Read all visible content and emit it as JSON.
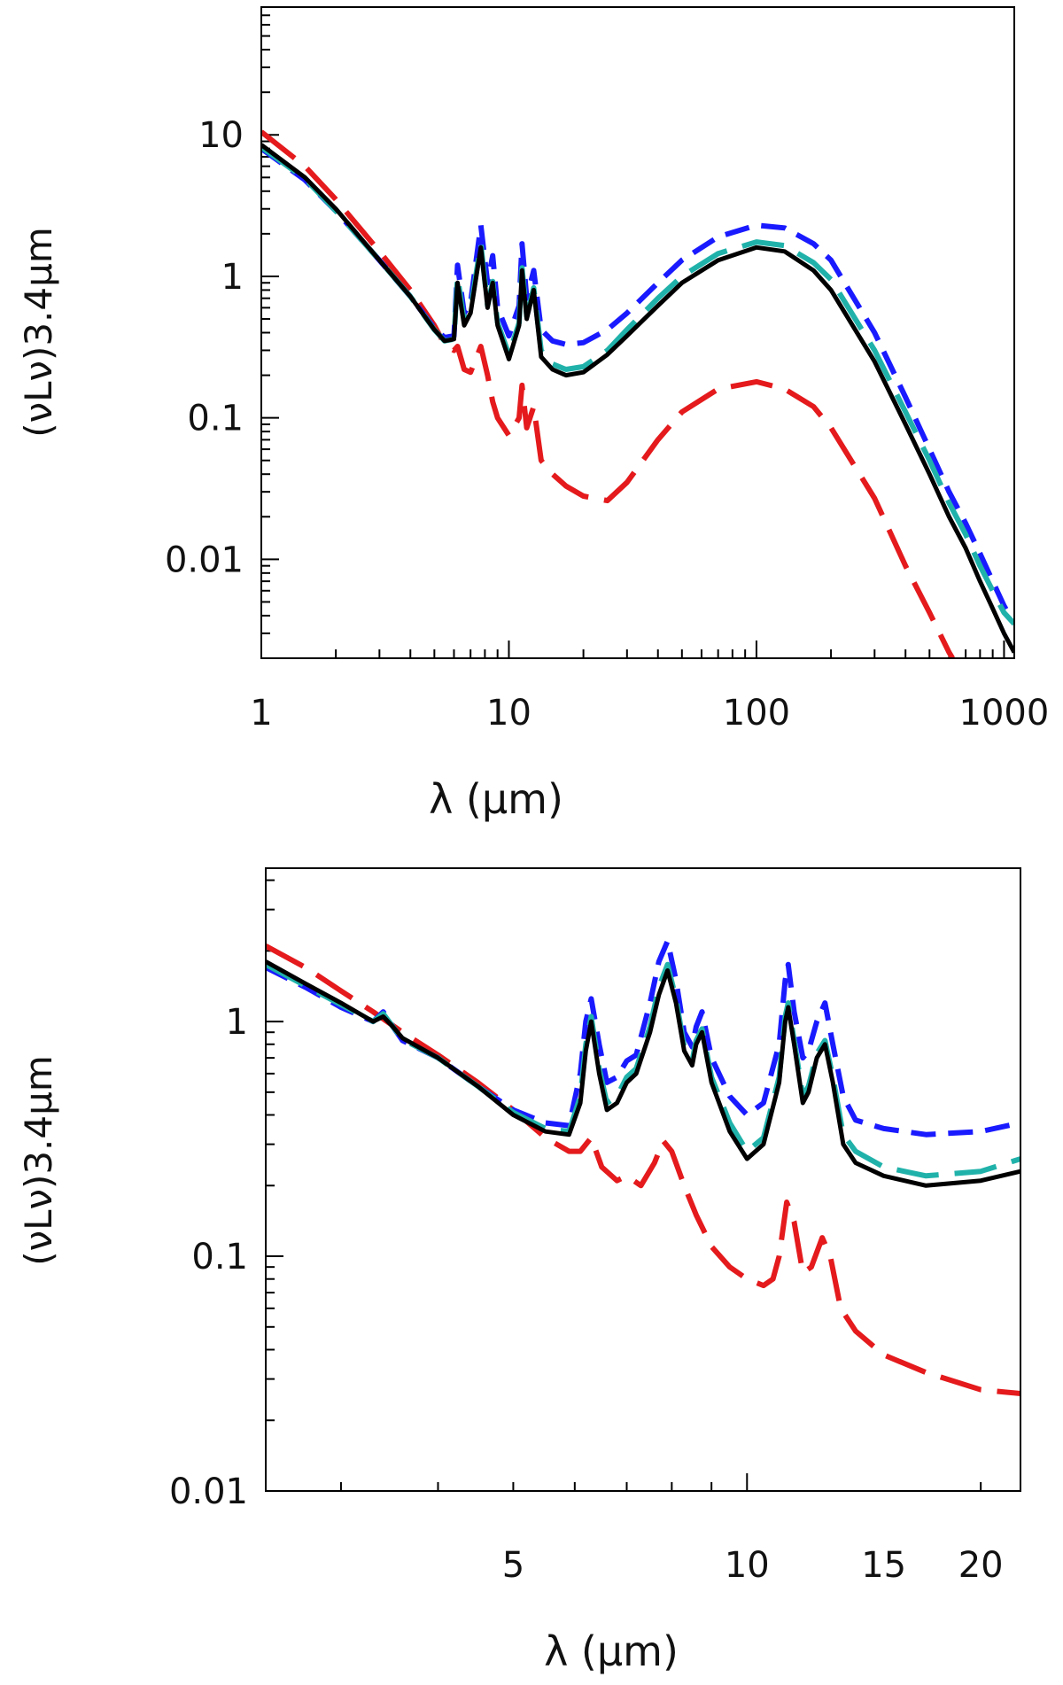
{
  "chart_data": [
    {
      "type": "line",
      "title": "",
      "xlabel": "λ (μm)",
      "ylabel": "(νLν)3.4μm",
      "xscale": "log",
      "yscale": "log",
      "xlim": [
        1,
        1100
      ],
      "ylim": [
        0.002,
        80
      ],
      "xticks": [
        1,
        10,
        100,
        1000
      ],
      "xtick_labels": [
        "1",
        "10",
        "100",
        "1000"
      ],
      "yticks": [
        0.01,
        0.1,
        1,
        10
      ],
      "ytick_labels": [
        "0.01",
        "0.1",
        "1",
        "10"
      ],
      "grid": false,
      "legend": "none",
      "series": [
        {
          "color": "#000000",
          "dash": "solid",
          "x": [
            1,
            1.5,
            2,
            3,
            4,
            5,
            5.5,
            6,
            6.2,
            6.6,
            7,
            7.7,
            8.2,
            8.6,
            9,
            10,
            11,
            11.3,
            11.8,
            12.6,
            13.5,
            15,
            17,
            20,
            25,
            30,
            40,
            50,
            70,
            100,
            130,
            170,
            200,
            300,
            400,
            500,
            600,
            700,
            800,
            900,
            1000,
            1100
          ],
          "y": [
            8.5,
            5,
            3,
            1.3,
            0.72,
            0.42,
            0.35,
            0.36,
            0.9,
            0.45,
            0.55,
            1.6,
            0.6,
            0.9,
            0.45,
            0.26,
            0.45,
            1.1,
            0.5,
            0.8,
            0.27,
            0.22,
            0.2,
            0.21,
            0.28,
            0.38,
            0.62,
            0.9,
            1.3,
            1.6,
            1.5,
            1.1,
            0.8,
            0.25,
            0.09,
            0.04,
            0.02,
            0.012,
            0.007,
            0.0045,
            0.003,
            0.0022
          ]
        },
        {
          "color": "#1a1aff",
          "dash": "short-dash",
          "x": [
            1,
            1.5,
            2,
            3,
            4,
            5,
            5.5,
            6,
            6.2,
            6.6,
            7,
            7.7,
            8.2,
            8.6,
            9,
            10,
            11,
            11.3,
            11.8,
            12.6,
            13.5,
            15,
            17,
            20,
            25,
            30,
            40,
            50,
            70,
            100,
            130,
            170,
            200,
            300,
            400,
            500,
            600,
            700,
            800,
            900,
            1000,
            1100
          ],
          "y": [
            8.0,
            4.8,
            2.9,
            1.3,
            0.72,
            0.43,
            0.37,
            0.38,
            1.2,
            0.55,
            0.65,
            2.3,
            0.9,
            1.4,
            0.6,
            0.38,
            0.62,
            1.7,
            0.7,
            1.1,
            0.42,
            0.35,
            0.33,
            0.34,
            0.42,
            0.55,
            0.9,
            1.3,
            1.9,
            2.3,
            2.2,
            1.7,
            1.3,
            0.4,
            0.14,
            0.06,
            0.03,
            0.018,
            0.011,
            0.007,
            0.0047,
            0.0035
          ]
        },
        {
          "color": "#20b2aa",
          "dash": "long-dash",
          "x": [
            1,
            1.5,
            2,
            3,
            4,
            5,
            5.5,
            6,
            6.2,
            6.6,
            7,
            7.7,
            8.2,
            8.6,
            9,
            10,
            11,
            11.3,
            11.8,
            12.6,
            13.5,
            15,
            17,
            20,
            25,
            30,
            40,
            50,
            70,
            100,
            130,
            170,
            200,
            300,
            400,
            500,
            600,
            700,
            800,
            900,
            1000,
            1100
          ],
          "y": [
            8.2,
            4.9,
            2.9,
            1.3,
            0.72,
            0.42,
            0.35,
            0.36,
            1.0,
            0.48,
            0.58,
            1.7,
            0.62,
            0.92,
            0.47,
            0.28,
            0.47,
            1.15,
            0.52,
            0.83,
            0.3,
            0.24,
            0.22,
            0.23,
            0.3,
            0.42,
            0.7,
            1.0,
            1.45,
            1.75,
            1.65,
            1.25,
            0.95,
            0.3,
            0.11,
            0.05,
            0.025,
            0.015,
            0.009,
            0.006,
            0.0042,
            0.0035
          ]
        },
        {
          "color": "#e41a1c",
          "dash": "long-dash",
          "x": [
            1,
            1.5,
            2,
            3,
            4,
            5,
            5.5,
            6,
            6.2,
            6.6,
            7,
            7.7,
            8.2,
            8.6,
            9,
            10,
            11,
            11.3,
            11.8,
            12.6,
            13.5,
            15,
            17,
            20,
            25,
            30,
            40,
            50,
            70,
            100,
            130,
            170,
            200,
            300,
            400,
            500,
            600,
            620
          ],
          "y": [
            10.5,
            6,
            3.5,
            1.5,
            0.8,
            0.45,
            0.33,
            0.3,
            0.32,
            0.22,
            0.21,
            0.32,
            0.2,
            0.13,
            0.1,
            0.075,
            0.1,
            0.17,
            0.085,
            0.12,
            0.05,
            0.04,
            0.033,
            0.028,
            0.026,
            0.035,
            0.07,
            0.11,
            0.16,
            0.18,
            0.16,
            0.12,
            0.085,
            0.027,
            0.009,
            0.0042,
            0.0022,
            0.002
          ]
        }
      ]
    },
    {
      "type": "line",
      "title": "",
      "xlabel": "λ (μm)",
      "ylabel": "(νLν)3.4μm",
      "xscale": "log",
      "yscale": "log",
      "xlim": [
        2.4,
        22.5
      ],
      "ylim": [
        0.01,
        4.5
      ],
      "xticks": [
        5,
        10,
        15,
        20
      ],
      "xtick_labels": [
        "5",
        "10",
        "15",
        "20"
      ],
      "yticks": [
        0.01,
        0.1,
        1
      ],
      "ytick_labels": [
        "0.01",
        "0.1",
        "1"
      ],
      "grid": false,
      "legend": "none",
      "series": [
        {
          "color": "#000000",
          "dash": "solid",
          "x": [
            2.4,
            2.7,
            3.0,
            3.3,
            3.4,
            3.5,
            3.6,
            4.0,
            4.5,
            5.0,
            5.5,
            5.9,
            6.1,
            6.2,
            6.3,
            6.45,
            6.6,
            6.8,
            7.0,
            7.2,
            7.5,
            7.7,
            7.9,
            8.1,
            8.3,
            8.5,
            8.6,
            8.75,
            9.0,
            9.5,
            10.0,
            10.5,
            11.0,
            11.2,
            11.3,
            11.5,
            11.8,
            12.0,
            12.3,
            12.6,
            12.9,
            13.3,
            13.8,
            15.0,
            17.0,
            20.0,
            22.5
          ],
          "y": [
            1.8,
            1.45,
            1.2,
            1.0,
            1.05,
            0.95,
            0.85,
            0.7,
            0.53,
            0.4,
            0.34,
            0.33,
            0.45,
            0.75,
            1.0,
            0.6,
            0.42,
            0.45,
            0.55,
            0.6,
            0.9,
            1.3,
            1.65,
            1.2,
            0.75,
            0.65,
            0.8,
            0.9,
            0.55,
            0.34,
            0.26,
            0.3,
            0.55,
            1.0,
            1.15,
            0.8,
            0.45,
            0.5,
            0.7,
            0.8,
            0.55,
            0.3,
            0.25,
            0.22,
            0.2,
            0.21,
            0.23
          ]
        },
        {
          "color": "#1a1aff",
          "dash": "short-dash",
          "x": [
            2.4,
            2.7,
            3.0,
            3.3,
            3.4,
            3.5,
            3.6,
            4.0,
            4.5,
            5.0,
            5.5,
            5.9,
            6.1,
            6.2,
            6.3,
            6.45,
            6.6,
            6.8,
            7.0,
            7.2,
            7.5,
            7.7,
            7.9,
            8.1,
            8.3,
            8.5,
            8.6,
            8.75,
            9.0,
            9.5,
            10.0,
            10.5,
            11.0,
            11.2,
            11.3,
            11.5,
            11.8,
            12.0,
            12.3,
            12.6,
            12.9,
            13.3,
            13.8,
            15.0,
            17.0,
            20.0,
            22.5
          ],
          "y": [
            1.7,
            1.4,
            1.15,
            1.0,
            1.1,
            0.95,
            0.83,
            0.7,
            0.53,
            0.42,
            0.37,
            0.36,
            0.6,
            1.0,
            1.25,
            0.8,
            0.55,
            0.58,
            0.68,
            0.72,
            1.2,
            1.8,
            2.2,
            1.5,
            0.9,
            0.78,
            0.95,
            1.1,
            0.7,
            0.48,
            0.4,
            0.45,
            0.8,
            1.5,
            1.75,
            1.1,
            0.7,
            0.75,
            1.0,
            1.2,
            0.8,
            0.48,
            0.38,
            0.35,
            0.33,
            0.34,
            0.37
          ]
        },
        {
          "color": "#20b2aa",
          "dash": "long-dash",
          "x": [
            2.4,
            2.7,
            3.0,
            3.3,
            3.4,
            3.5,
            3.6,
            4.0,
            4.5,
            5.0,
            5.5,
            5.9,
            6.1,
            6.2,
            6.3,
            6.45,
            6.6,
            6.8,
            7.0,
            7.2,
            7.5,
            7.7,
            7.9,
            8.1,
            8.3,
            8.5,
            8.6,
            8.75,
            9.0,
            9.5,
            10.0,
            10.5,
            11.0,
            11.2,
            11.3,
            11.5,
            11.8,
            12.0,
            12.3,
            12.6,
            12.9,
            13.3,
            13.8,
            15.0,
            17.0,
            20.0,
            22.5
          ],
          "y": [
            1.75,
            1.42,
            1.18,
            1.0,
            1.08,
            0.95,
            0.84,
            0.7,
            0.53,
            0.41,
            0.35,
            0.34,
            0.48,
            0.8,
            1.05,
            0.63,
            0.45,
            0.48,
            0.58,
            0.63,
            0.95,
            1.4,
            1.75,
            1.25,
            0.78,
            0.68,
            0.83,
            0.93,
            0.58,
            0.37,
            0.28,
            0.32,
            0.58,
            1.05,
            1.2,
            0.83,
            0.48,
            0.53,
            0.73,
            0.83,
            0.58,
            0.33,
            0.28,
            0.24,
            0.22,
            0.23,
            0.26
          ]
        },
        {
          "color": "#e41a1c",
          "dash": "long-dash",
          "x": [
            2.4,
            2.7,
            3.0,
            3.3,
            3.6,
            4.0,
            4.5,
            5.0,
            5.5,
            5.9,
            6.1,
            6.3,
            6.5,
            6.8,
            7.0,
            7.3,
            7.6,
            7.8,
            8.0,
            8.3,
            8.6,
            9.0,
            9.5,
            10.0,
            10.5,
            10.8,
            11.0,
            11.25,
            11.5,
            11.8,
            12.1,
            12.5,
            12.8,
            13.2,
            13.8,
            15.0,
            17.0,
            20.0,
            22.5
          ],
          "y": [
            2.1,
            1.7,
            1.35,
            1.1,
            0.9,
            0.72,
            0.55,
            0.42,
            0.32,
            0.28,
            0.28,
            0.32,
            0.24,
            0.21,
            0.22,
            0.2,
            0.25,
            0.31,
            0.28,
            0.2,
            0.15,
            0.11,
            0.09,
            0.08,
            0.075,
            0.08,
            0.1,
            0.17,
            0.14,
            0.085,
            0.09,
            0.12,
            0.1,
            0.06,
            0.048,
            0.038,
            0.032,
            0.027,
            0.026
          ]
        }
      ]
    }
  ]
}
